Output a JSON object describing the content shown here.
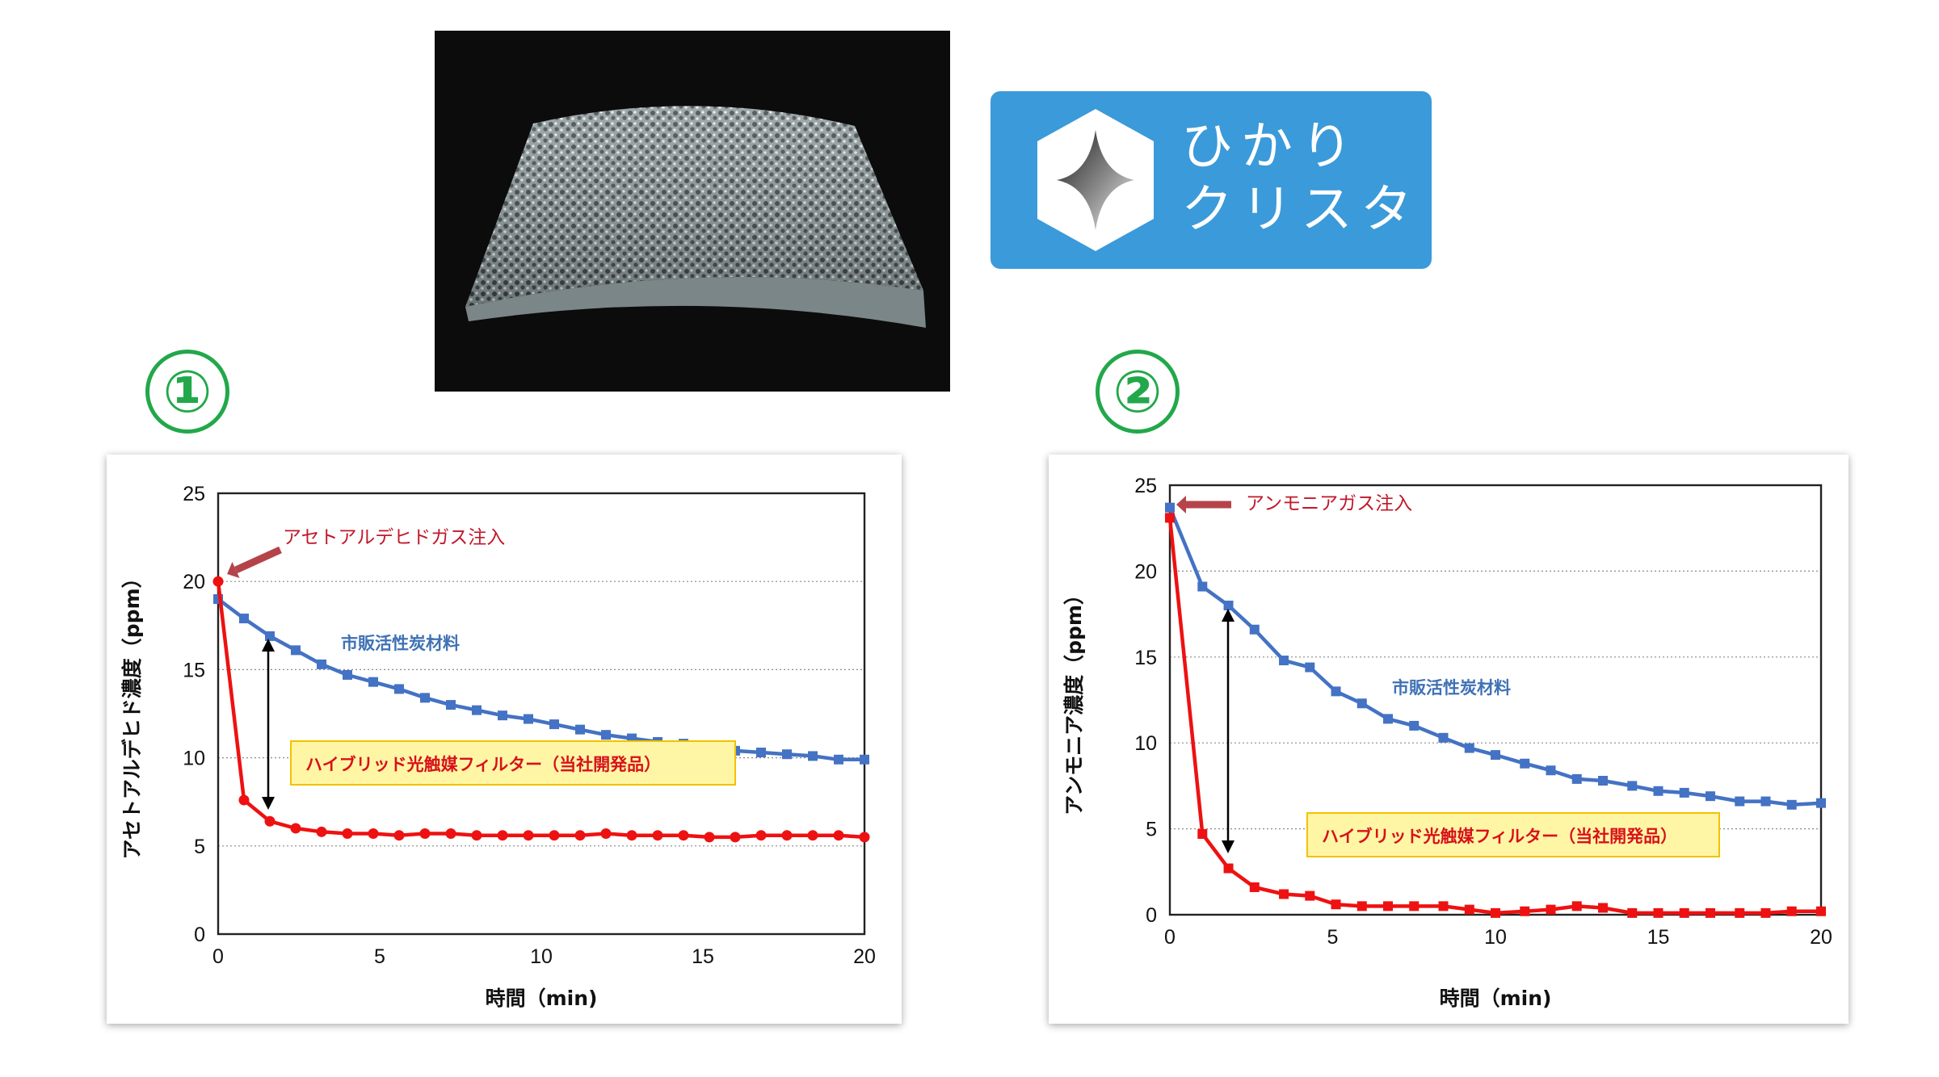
{
  "logo": {
    "line1": "ひかり",
    "line2": "クリスタ"
  },
  "markers": [
    "①",
    "②"
  ],
  "colors": {
    "blue_series": "#4472c4",
    "red_series": "#ee1111",
    "box_bg": "#fff6a5",
    "box_border": "#f2c200",
    "green": "#22a84a"
  },
  "chart_data": [
    {
      "type": "line",
      "title": "",
      "xlabel": "時間（min)",
      "ylabel": "アセトアルデヒド濃度（ppm）",
      "xlim": [
        0,
        20
      ],
      "ylim": [
        0,
        25
      ],
      "xticks": [
        "0",
        "5",
        "10",
        "15",
        "20"
      ],
      "yticks": [
        "0",
        "5",
        "10",
        "15",
        "20",
        "25"
      ],
      "annotations": {
        "injection": "アセトアルデヒドガス注入",
        "blue_label": "市販活性炭材料",
        "red_label": "ハイブリッド光触媒フィルター（当社開発品）"
      },
      "series": [
        {
          "name": "市販活性炭材料",
          "color": "#4472c4",
          "marker": "square",
          "x": [
            0,
            0.8,
            1.6,
            2.4,
            3.2,
            4.0,
            4.8,
            5.6,
            6.4,
            7.2,
            8.0,
            8.8,
            9.6,
            10.4,
            11.2,
            12.0,
            12.8,
            13.6,
            14.4,
            15.2,
            16.0,
            16.8,
            17.6,
            18.4,
            19.2,
            20.0
          ],
          "y": [
            19.0,
            17.9,
            16.9,
            16.1,
            15.3,
            14.7,
            14.3,
            13.9,
            13.4,
            13.0,
            12.7,
            12.4,
            12.2,
            11.9,
            11.6,
            11.3,
            11.1,
            10.9,
            10.8,
            10.6,
            10.4,
            10.3,
            10.2,
            10.1,
            9.9,
            9.9
          ]
        },
        {
          "name": "ハイブリッド光触媒フィルター（当社開発品）",
          "color": "#ee1111",
          "marker": "circle",
          "x": [
            0,
            0.8,
            1.6,
            2.4,
            3.2,
            4.0,
            4.8,
            5.6,
            6.4,
            7.2,
            8.0,
            8.8,
            9.6,
            10.4,
            11.2,
            12.0,
            12.8,
            13.6,
            14.4,
            15.2,
            16.0,
            16.8,
            17.6,
            18.4,
            19.2,
            20.0
          ],
          "y": [
            20.0,
            7.6,
            6.4,
            6.0,
            5.8,
            5.7,
            5.7,
            5.6,
            5.7,
            5.7,
            5.6,
            5.6,
            5.6,
            5.6,
            5.6,
            5.7,
            5.6,
            5.6,
            5.6,
            5.5,
            5.5,
            5.6,
            5.6,
            5.6,
            5.6,
            5.5
          ]
        }
      ]
    },
    {
      "type": "line",
      "title": "",
      "xlabel": "時間（min)",
      "ylabel": "アンモニア濃度（ppm）",
      "xlim": [
        0,
        20
      ],
      "ylim": [
        0,
        25
      ],
      "xticks": [
        "0",
        "5",
        "10",
        "15",
        "20"
      ],
      "yticks": [
        "0",
        "5",
        "10",
        "15",
        "20",
        "25"
      ],
      "annotations": {
        "injection": "アンモニアガス注入",
        "blue_label": "市販活性炭材料",
        "red_label": "ハイブリッド光触媒フィルター（当社開発品）"
      },
      "series": [
        {
          "name": "市販活性炭材料",
          "color": "#4472c4",
          "marker": "square",
          "x": [
            0,
            1,
            1.8,
            2.6,
            3.5,
            4.3,
            5.1,
            5.9,
            6.7,
            7.5,
            8.4,
            9.2,
            10.0,
            10.9,
            11.7,
            12.5,
            13.3,
            14.2,
            15.0,
            15.8,
            16.6,
            17.5,
            18.3,
            19.1,
            20.0
          ],
          "y": [
            23.7,
            19.1,
            18.0,
            16.6,
            14.8,
            14.4,
            13.0,
            12.3,
            11.4,
            11.0,
            10.3,
            9.7,
            9.3,
            8.8,
            8.4,
            7.9,
            7.8,
            7.5,
            7.2,
            7.1,
            6.9,
            6.6,
            6.6,
            6.4,
            6.5
          ]
        },
        {
          "name": "ハイブリッド光触媒フィルター（当社開発品）",
          "color": "#ee1111",
          "marker": "square",
          "x": [
            0,
            1,
            1.8,
            2.6,
            3.5,
            4.3,
            5.1,
            5.9,
            6.7,
            7.5,
            8.4,
            9.2,
            10.0,
            10.9,
            11.7,
            12.5,
            13.3,
            14.2,
            15.0,
            15.8,
            16.6,
            17.5,
            18.3,
            19.1,
            20.0
          ],
          "y": [
            23.1,
            4.7,
            2.7,
            1.6,
            1.2,
            1.1,
            0.6,
            0.5,
            0.5,
            0.5,
            0.5,
            0.3,
            0.1,
            0.2,
            0.3,
            0.5,
            0.4,
            0.1,
            0.1,
            0.1,
            0.1,
            0.1,
            0.1,
            0.2,
            0.2
          ]
        }
      ]
    }
  ]
}
